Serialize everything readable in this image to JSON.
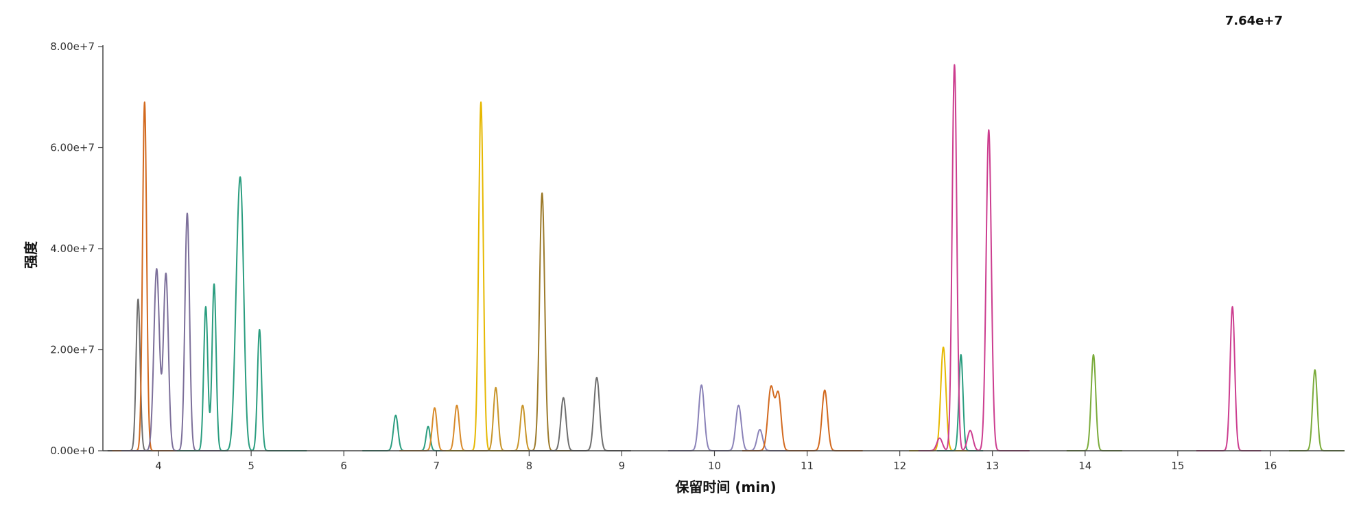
{
  "chart_data": {
    "type": "line",
    "chart_kind": "chromatogram",
    "max_intensity_label": "7.64e+7",
    "xlabel": "保留时间 (min)",
    "ylabel": "强度",
    "xlim": [
      3.4,
      16.8
    ],
    "ylim": [
      0,
      80000000
    ],
    "x_ticks": [
      4,
      5,
      6,
      7,
      8,
      9,
      10,
      11,
      12,
      13,
      14,
      15,
      16
    ],
    "y_ticks": [
      0,
      20000000,
      40000000,
      60000000,
      80000000
    ],
    "y_tick_labels": [
      "0.00e+0",
      "2.00e+7",
      "4.00e+7",
      "6.00e+7",
      "8.00e+7"
    ],
    "grid": false,
    "legend": "none",
    "series": [
      {
        "color": "#6e6e6e",
        "range": [
          3.45,
          4.2
        ],
        "peaks": [
          {
            "rt": 3.78,
            "height": 30000000,
            "sigma": 0.022
          }
        ]
      },
      {
        "color": "#d2691e",
        "range": [
          3.5,
          4.2
        ],
        "peaks": [
          {
            "rt": 3.85,
            "height": 69000000,
            "sigma": 0.022
          }
        ]
      },
      {
        "color": "#7c6f9a",
        "range": [
          3.6,
          4.75
        ],
        "peaks": [
          {
            "rt": 3.98,
            "height": 36000000,
            "sigma": 0.03
          },
          {
            "rt": 4.08,
            "height": 35000000,
            "sigma": 0.027
          },
          {
            "rt": 4.31,
            "height": 47000000,
            "sigma": 0.025
          }
        ]
      },
      {
        "color": "#2a9d7f",
        "range": [
          4.2,
          5.6
        ],
        "peaks": [
          {
            "rt": 4.51,
            "height": 28500000,
            "sigma": 0.022
          },
          {
            "rt": 4.6,
            "height": 33000000,
            "sigma": 0.022
          },
          {
            "rt": 4.86,
            "height": 35500000,
            "sigma": 0.035
          },
          {
            "rt": 4.9,
            "height": 30000000,
            "sigma": 0.03
          },
          {
            "rt": 5.09,
            "height": 24000000,
            "sigma": 0.022
          }
        ]
      },
      {
        "color": "#2a9d7f",
        "range": [
          6.2,
          7.2
        ],
        "peaks": [
          {
            "rt": 6.56,
            "height": 7000000,
            "sigma": 0.025
          },
          {
            "rt": 6.91,
            "height": 4800000,
            "sigma": 0.022
          }
        ]
      },
      {
        "color": "#d88a2a",
        "range": [
          6.6,
          7.5
        ],
        "peaks": [
          {
            "rt": 6.98,
            "height": 8500000,
            "sigma": 0.025
          },
          {
            "rt": 7.22,
            "height": 9000000,
            "sigma": 0.025
          }
        ]
      },
      {
        "color": "#e6b800",
        "range": [
          7.1,
          7.9
        ],
        "peaks": [
          {
            "rt": 7.48,
            "height": 69000000,
            "sigma": 0.025
          }
        ]
      },
      {
        "color": "#c8952a",
        "range": [
          7.3,
          8.3
        ],
        "peaks": [
          {
            "rt": 7.64,
            "height": 12500000,
            "sigma": 0.025
          },
          {
            "rt": 7.93,
            "height": 9000000,
            "sigma": 0.025
          }
        ]
      },
      {
        "color": "#9c7a2a",
        "range": [
          7.8,
          8.5
        ],
        "peaks": [
          {
            "rt": 8.14,
            "height": 51000000,
            "sigma": 0.028
          }
        ]
      },
      {
        "color": "#6e6e6e",
        "range": [
          8.0,
          9.1
        ],
        "peaks": [
          {
            "rt": 8.37,
            "height": 10500000,
            "sigma": 0.028
          },
          {
            "rt": 8.73,
            "height": 14500000,
            "sigma": 0.03
          }
        ]
      },
      {
        "color": "#8a82b8",
        "range": [
          9.5,
          10.8
        ],
        "peaks": [
          {
            "rt": 9.86,
            "height": 13000000,
            "sigma": 0.03
          },
          {
            "rt": 10.26,
            "height": 9000000,
            "sigma": 0.03
          },
          {
            "rt": 10.49,
            "height": 4200000,
            "sigma": 0.03
          }
        ]
      },
      {
        "color": "#d2691e",
        "range": [
          10.3,
          11.6
        ],
        "peaks": [
          {
            "rt": 10.61,
            "height": 12500000,
            "sigma": 0.033
          },
          {
            "rt": 10.69,
            "height": 11000000,
            "sigma": 0.03
          },
          {
            "rt": 11.19,
            "height": 12000000,
            "sigma": 0.03
          }
        ]
      },
      {
        "color": "#e6b800",
        "range": [
          12.1,
          12.8
        ],
        "peaks": [
          {
            "rt": 12.47,
            "height": 20500000,
            "sigma": 0.028
          }
        ]
      },
      {
        "color": "#2a9d7f",
        "range": [
          12.4,
          12.9
        ],
        "peaks": [
          {
            "rt": 12.66,
            "height": 19000000,
            "sigma": 0.022
          }
        ]
      },
      {
        "color": "#cc3d8f",
        "range": [
          12.2,
          13.4
        ],
        "peaks": [
          {
            "rt": 12.43,
            "height": 2500000,
            "sigma": 0.03
          },
          {
            "rt": 12.59,
            "height": 76400000,
            "sigma": 0.025
          },
          {
            "rt": 12.76,
            "height": 4000000,
            "sigma": 0.03
          },
          {
            "rt": 12.96,
            "height": 63500000,
            "sigma": 0.028
          }
        ]
      },
      {
        "color": "#7aab3a",
        "range": [
          13.8,
          14.4
        ],
        "peaks": [
          {
            "rt": 14.09,
            "height": 19000000,
            "sigma": 0.025
          }
        ]
      },
      {
        "color": "#cc3d8f",
        "range": [
          15.2,
          15.9
        ],
        "peaks": [
          {
            "rt": 15.59,
            "height": 28500000,
            "sigma": 0.025
          }
        ]
      },
      {
        "color": "#7aab3a",
        "range": [
          16.2,
          16.8
        ],
        "peaks": [
          {
            "rt": 16.48,
            "height": 16000000,
            "sigma": 0.025
          }
        ]
      }
    ]
  }
}
